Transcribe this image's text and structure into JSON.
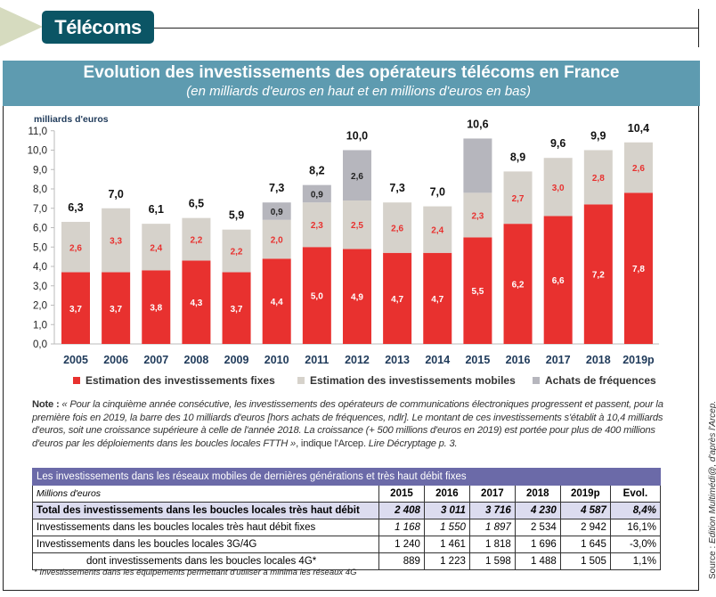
{
  "header": {
    "section": "Télécoms"
  },
  "banner": {
    "title": "Evolution des investissements des opérateurs télécoms en France",
    "subtitle": "(en milliards d'euros en haut et en millions d'euros en bas)"
  },
  "chart_data": {
    "type": "bar",
    "stacked": true,
    "ylabel": "milliards d'euros",
    "ylim": [
      0,
      11
    ],
    "yticks": [
      "0,0",
      "1,0",
      "2,0",
      "3,0",
      "4,0",
      "5,0",
      "6,0",
      "7,0",
      "8,0",
      "9,0",
      "10,0",
      "11,0"
    ],
    "categories": [
      "2005",
      "2006",
      "2007",
      "2008",
      "2009",
      "2010",
      "2011",
      "2012",
      "2013",
      "2014",
      "2015",
      "2016",
      "2017",
      "2018",
      "2019p"
    ],
    "series": [
      {
        "name": "Estimation des investissements fixes",
        "color": "#e8312f",
        "values": [
          3.7,
          3.7,
          3.8,
          4.3,
          3.7,
          4.4,
          5.0,
          4.9,
          4.7,
          4.7,
          5.5,
          6.2,
          6.6,
          7.2,
          7.8
        ],
        "labels": [
          "3,7",
          "3,7",
          "3,8",
          "4,3",
          "3,7",
          "4,4",
          "5,0",
          "4,9",
          "4,7",
          "4,7",
          "5,5",
          "6,2",
          "6,6",
          "7,2",
          "7,8"
        ]
      },
      {
        "name": "Estimation des investissements  mobiles",
        "color": "#d6d2cb",
        "values": [
          2.6,
          3.3,
          2.4,
          2.2,
          2.2,
          2.0,
          2.3,
          2.5,
          2.6,
          2.4,
          2.3,
          2.7,
          3.0,
          2.8,
          2.6
        ],
        "labels": [
          "2,6",
          "3,3",
          "2,4",
          "2,2",
          "2,2",
          "2,0",
          "2,3",
          "2,5",
          "2,6",
          "2,4",
          "2,3",
          "2,7",
          "3,0",
          "2,8",
          "2,6"
        ]
      },
      {
        "name": "Achats de fréquences",
        "color": "#b6b6bd",
        "values": [
          0,
          0,
          0,
          0,
          0,
          0.9,
          0.9,
          2.6,
          0,
          0,
          2.8,
          0,
          0,
          0,
          0
        ],
        "labels": [
          "",
          "",
          "",
          "",
          "",
          "0,9",
          "0,9",
          "2,6",
          "",
          "",
          "",
          "",
          "",
          "",
          ""
        ]
      }
    ],
    "totals": [
      "6,3",
      "7,0",
      "6,1",
      "6,5",
      "5,9",
      "7,3",
      "8,2",
      "10,0",
      "7,3",
      "7,0",
      "10,6",
      "8,9",
      "9,6",
      "9,9",
      "10,4"
    ],
    "legend": "bottom"
  },
  "note": {
    "label": "Note :",
    "quote": "« Pour la cinquième année consécutive, les investissements des opérateurs de communications électroniques progressent et passent, pour la première fois en 2019, la barre des 10 milliards d'euros [hors achats de fréquences, ndlr]. Le montant de ces investissements s'établit à 10,4 milliards d'euros, soit une croissance supérieure à celle de l'année 2018.  La croissance (+ 500 millions d'euros en 2019) est portée pour plus de 400 millions d'euros par les déploiements dans les boucles locales FTTH »",
    "after": ", indique l'Arcep.",
    "ref": "Lire Décryptage p. 3."
  },
  "table": {
    "caption": "Les investissements dans les réseaux mobiles de dernières générations et très haut débit fixes",
    "unit": "Millions d'euros",
    "columns": [
      "2015",
      "2016",
      "2017",
      "2018",
      "2019p",
      "Evol."
    ],
    "rows": [
      {
        "label": "Total des investissements dans les boucles locales très haut débit",
        "values": [
          "2 408",
          "3 011",
          "3 716",
          "4 230",
          "4 587",
          "8,4%"
        ]
      },
      {
        "label": "Investissements dans les boucles locales très haut débit fixes",
        "values": [
          "1 168",
          "1 550",
          "1 897",
          "2 534",
          "2 942",
          "16,1%"
        ]
      },
      {
        "label": "Investissements dans les boucles locales 3G/4G",
        "values": [
          "1 240",
          "1 461",
          "1 818",
          "1 696",
          "1 645",
          "-3,0%"
        ]
      },
      {
        "label": "dont investissements dans les boucles locales 4G*",
        "values": [
          "889",
          "1 223",
          "1 598",
          "1 488",
          "1 505",
          "1,1%"
        ]
      }
    ],
    "footnote": "* Investissements dans les équipements permettant d'utiliser a minima les réseaux 4G"
  },
  "source": {
    "label": "Source : ",
    "text": "Edition Multimédi@, d'après l'Arcep."
  }
}
